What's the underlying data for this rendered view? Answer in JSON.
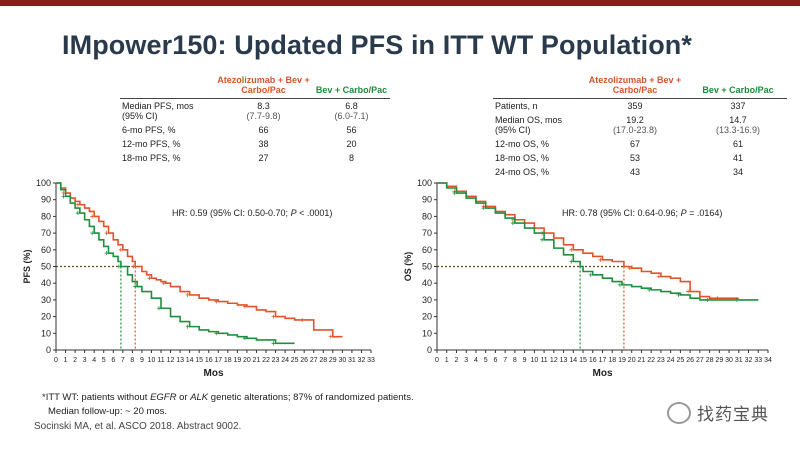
{
  "title": "IMpower150: Updated PFS in ITT WT Population*",
  "colors": {
    "atezo": "#e0542a",
    "bev": "#1e8f3e",
    "accent": "#8c1d18",
    "title": "#2a3a4d"
  },
  "pfs_table": {
    "col_atezo": "Atezolizumab + Bev + Carbo/Pac",
    "col_bev": "Bev + Carbo/Pac",
    "rows": [
      {
        "label": "Median PFS, mos (95% CI)",
        "atezo": "8.3",
        "atezo_ci": "(7.7-9.8)",
        "bev": "6.8",
        "bev_ci": "(6.0-7.1)"
      },
      {
        "label": "6-mo PFS, %",
        "atezo": "66",
        "bev": "56"
      },
      {
        "label": "12-mo PFS, %",
        "atezo": "38",
        "bev": "20"
      },
      {
        "label": "18-mo PFS, %",
        "atezo": "27",
        "bev": "8"
      }
    ]
  },
  "os_table": {
    "col_atezo": "Atezolizumab + Bev + Carbo/Pac",
    "col_bev": "Bev + Carbo/Pac",
    "rows": [
      {
        "label": "Patients, n",
        "atezo": "359",
        "bev": "337"
      },
      {
        "label": "Median OS, mos (95% CI)",
        "atezo": "19.2",
        "atezo_ci": "(17.0-23.8)",
        "bev": "14.7",
        "bev_ci": "(13.3-16.9)"
      },
      {
        "label": "12-mo OS, %",
        "atezo": "67",
        "bev": "61"
      },
      {
        "label": "18-mo OS, %",
        "atezo": "53",
        "bev": "41"
      },
      {
        "label": "24-mo OS, %",
        "atezo": "43",
        "bev": "34"
      }
    ]
  },
  "pfs_hr": {
    "prefix": "HR: 0.59 (95% CI: 0.50-0.70; ",
    "p_label": "P",
    "suffix": " < .0001)"
  },
  "os_hr": {
    "prefix": "HR: 0.78 (95% CI: 0.64-0.96; ",
    "p_label": "P",
    "suffix": " = .0164)"
  },
  "footnote": {
    "part1": "*ITT WT: patients without ",
    "egfr": "EGFR",
    "part2": " or ",
    "alk": "ALK",
    "part3": " genetic alterations; 87% of randomized patients.",
    "followup": "Median follow-up: ~ 20 mos."
  },
  "source": "Socinski MA, et al. ASCO 2018. Abstract 9002.",
  "watermark": {
    "icon": "wechat-icon",
    "text": "找药宝典"
  },
  "chart_data": [
    {
      "type": "line",
      "ylabel": "PFS (%)",
      "xlabel": "Mos",
      "xlim": [
        0,
        33
      ],
      "ylim": [
        0,
        100
      ],
      "yticks": [
        0,
        10,
        20,
        30,
        40,
        50,
        60,
        70,
        80,
        90,
        100
      ],
      "xticks": [
        0,
        1,
        2,
        3,
        4,
        5,
        6,
        7,
        8,
        9,
        10,
        11,
        12,
        13,
        14,
        15,
        16,
        17,
        18,
        19,
        20,
        21,
        22,
        23,
        24,
        25,
        26,
        27,
        28,
        29,
        30,
        31,
        32,
        33
      ],
      "median_line_y": 50,
      "series": [
        {
          "color": "#e0542a",
          "x": [
            0,
            0.5,
            1,
            1.5,
            2,
            2.5,
            3,
            3.5,
            4,
            4.5,
            5,
            5.5,
            6,
            6.5,
            7,
            7.5,
            8,
            8.3,
            9,
            9.5,
            10,
            10.5,
            11,
            11.5,
            12,
            13,
            14,
            15,
            16,
            17,
            18,
            19,
            20,
            21,
            22,
            23,
            24,
            25,
            26,
            27,
            28,
            29,
            30
          ],
          "y": [
            100,
            97,
            94,
            91,
            89,
            87,
            85,
            83,
            80,
            77,
            74,
            70,
            66,
            63,
            60,
            56,
            53,
            50,
            47,
            45,
            43,
            42,
            41,
            40,
            38,
            35,
            33,
            31,
            30,
            29,
            28,
            27,
            26,
            24,
            23,
            20,
            19,
            18,
            18,
            12,
            12,
            8,
            8
          ]
        },
        {
          "color": "#1e8f3e",
          "x": [
            0,
            0.5,
            1,
            1.5,
            2,
            2.5,
            3,
            3.5,
            4,
            4.5,
            5,
            5.5,
            6,
            6.5,
            6.8,
            7.5,
            8,
            8.5,
            9,
            10,
            11,
            12,
            13,
            14,
            15,
            16,
            17,
            18,
            19,
            20,
            21,
            22,
            23,
            24,
            25
          ],
          "y": [
            100,
            96,
            92,
            88,
            85,
            82,
            78,
            74,
            70,
            66,
            62,
            58,
            56,
            53,
            50,
            45,
            41,
            38,
            35,
            31,
            25,
            20,
            17,
            14,
            12,
            11,
            10,
            9,
            8,
            7,
            6,
            6,
            4,
            4,
            4
          ]
        }
      ]
    },
    {
      "type": "line",
      "ylabel": "OS (%)",
      "xlabel": "Mos",
      "xlim": [
        0,
        34
      ],
      "ylim": [
        0,
        100
      ],
      "yticks": [
        0,
        10,
        20,
        30,
        40,
        50,
        60,
        70,
        80,
        90,
        100
      ],
      "xticks": [
        0,
        1,
        2,
        3,
        4,
        5,
        6,
        7,
        8,
        9,
        10,
        11,
        12,
        13,
        14,
        15,
        16,
        17,
        18,
        19,
        20,
        21,
        22,
        23,
        24,
        25,
        26,
        27,
        28,
        29,
        30,
        31,
        32,
        33,
        34
      ],
      "median_line_y": 50,
      "series": [
        {
          "color": "#e0542a",
          "x": [
            0,
            1,
            2,
            3,
            4,
            5,
            6,
            7,
            8,
            9,
            10,
            11,
            12,
            13,
            14,
            15,
            16,
            17,
            18,
            19.2,
            20,
            21,
            22,
            23,
            24,
            25,
            26,
            27,
            28,
            29,
            30,
            31
          ],
          "y": [
            100,
            98,
            95,
            92,
            89,
            86,
            83,
            81,
            78,
            76,
            73,
            70,
            67,
            63,
            60,
            58,
            56,
            54,
            53,
            50,
            49,
            47,
            46,
            44,
            43,
            41,
            35,
            32,
            31,
            31,
            31,
            31
          ]
        },
        {
          "color": "#1e8f3e",
          "x": [
            0,
            1,
            2,
            3,
            4,
            5,
            6,
            7,
            8,
            9,
            10,
            11,
            12,
            13,
            14,
            14.7,
            15,
            16,
            17,
            18,
            19,
            20,
            21,
            22,
            23,
            24,
            25,
            26,
            27,
            28,
            29,
            30,
            31,
            32,
            33
          ],
          "y": [
            100,
            97,
            94,
            91,
            88,
            85,
            82,
            79,
            76,
            73,
            70,
            66,
            61,
            57,
            53,
            50,
            47,
            45,
            43,
            41,
            39,
            38,
            37,
            36,
            35,
            34,
            33,
            31,
            30,
            30,
            30,
            30,
            30,
            30,
            30
          ]
        }
      ]
    }
  ]
}
